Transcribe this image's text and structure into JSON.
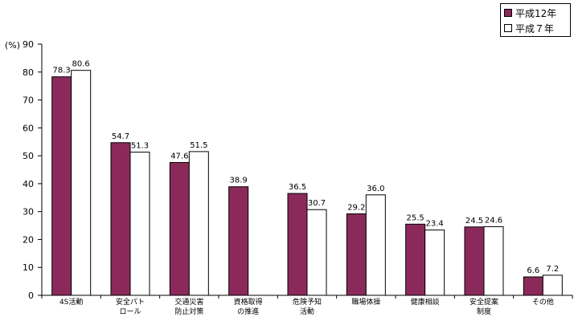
{
  "chart_data": {
    "type": "bar",
    "unit_label": "(%)",
    "ylim": [
      0,
      90
    ],
    "yticks": [
      0,
      10,
      20,
      30,
      40,
      50,
      60,
      70,
      80,
      90
    ],
    "categories": [
      [
        "4S活動"
      ],
      [
        "安全パト",
        "ロール"
      ],
      [
        "交通災害",
        "防止対策"
      ],
      [
        "資格取得",
        "の推進"
      ],
      [
        "危険予知",
        "活動"
      ],
      [
        "職場体操"
      ],
      [
        "健康相談"
      ],
      [
        "安全提案",
        "制度"
      ],
      [
        "その他"
      ]
    ],
    "series": [
      {
        "name": "平成12年",
        "color": "#8b2a5a",
        "values": [
          78.3,
          54.7,
          47.6,
          38.9,
          36.5,
          29.2,
          25.5,
          24.5,
          6.6
        ]
      },
      {
        "name": "平成７年",
        "color": "#ffffff",
        "values": [
          80.6,
          51.3,
          51.5,
          null,
          30.7,
          36.0,
          23.4,
          24.6,
          7.2
        ]
      }
    ],
    "grid": false,
    "legend": "top-right"
  }
}
